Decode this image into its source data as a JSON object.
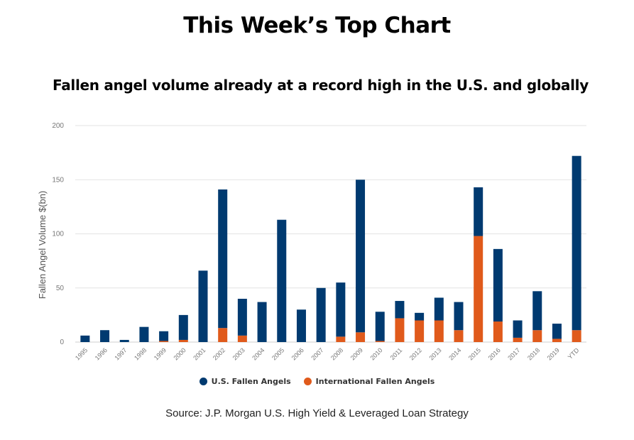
{
  "page": {
    "title": "This Week’s Top Chart",
    "source": "Source: J.P. Morgan U.S. High Yield & Leveraged Loan Strategy"
  },
  "colors": {
    "us": "#003a70",
    "intl": "#e05a1b",
    "grid": "#e3e3e3",
    "axis_text": "#777777"
  },
  "chart_data": {
    "type": "bar",
    "stacked": true,
    "title": "Fallen angel volume already at a record high in the U.S. and globally",
    "xlabel": "",
    "ylabel": "Fallen Angel Volume $(bn)",
    "ylim": [
      0,
      200
    ],
    "yticks": [
      0,
      50,
      100,
      150,
      200
    ],
    "grid": true,
    "legend_position": "bottom-center",
    "categories": [
      "1995",
      "1996",
      "1997",
      "1998",
      "1999",
      "2000",
      "2001",
      "2002",
      "2003",
      "2004",
      "2005",
      "2006",
      "2007",
      "2008",
      "2009",
      "2010",
      "2011",
      "2012",
      "2013",
      "2014",
      "2015",
      "2016",
      "2017",
      "2018",
      "2019",
      "YTD"
    ],
    "series": [
      {
        "name": "International Fallen Angels",
        "color_key": "intl",
        "values": [
          0,
          0,
          0,
          0,
          1,
          2,
          0,
          13,
          6,
          0,
          0,
          0,
          0,
          5,
          9,
          1,
          22,
          20,
          20,
          11,
          98,
          19,
          4,
          11,
          3,
          11
        ]
      },
      {
        "name": "U.S. Fallen Angels",
        "color_key": "us",
        "values": [
          6,
          11,
          2,
          14,
          9,
          23,
          66,
          128,
          34,
          37,
          113,
          30,
          50,
          50,
          141,
          27,
          16,
          7,
          21,
          26,
          45,
          67,
          16,
          36,
          14,
          161
        ]
      }
    ]
  },
  "legend": {
    "items": [
      {
        "label": "U.S. Fallen Angels",
        "color": "#003a70"
      },
      {
        "label": "International Fallen Angels",
        "color": "#e05a1b"
      }
    ]
  }
}
